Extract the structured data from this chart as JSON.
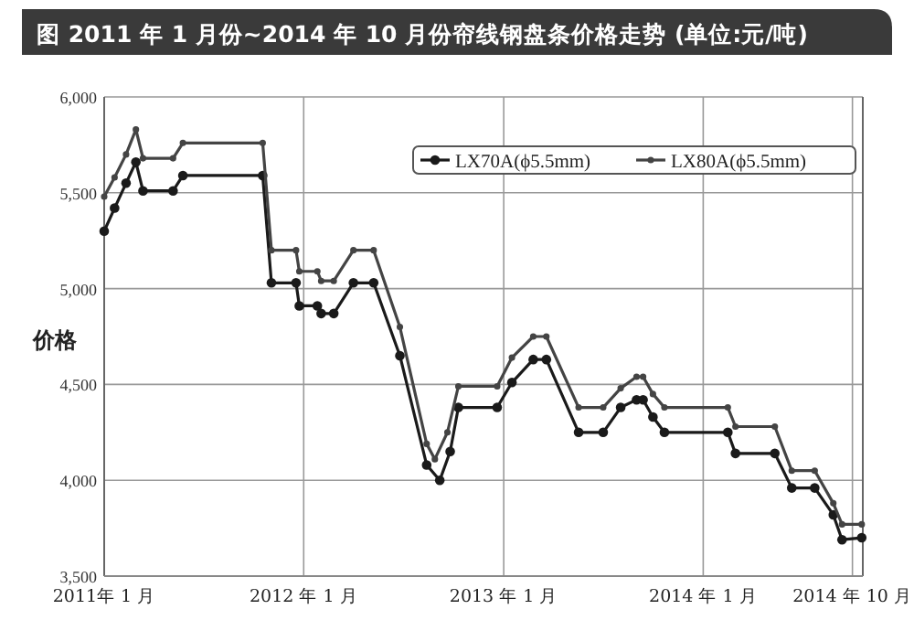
{
  "chart_data": {
    "type": "line",
    "title": "图 2011 年 1 月份~2014 年 10 月份帘线钢盘条价格走势 (单位:元/吨)",
    "ylabel": "价格",
    "xlim": [
      "2011-01-01",
      "2014-10-20"
    ],
    "xticks": [
      {
        "value": "2011-01-01",
        "label": "2011年 1 月"
      },
      {
        "value": "2012-01-01",
        "label": "2012 年 1 月"
      },
      {
        "value": "2013-01-01",
        "label": "2013 年 1 月"
      },
      {
        "value": "2014-01-01",
        "label": "2014 年 1 月"
      },
      {
        "value": "2014-10-01",
        "label": "2014 年 10 月"
      }
    ],
    "ylim": [
      3500,
      6000
    ],
    "yticks": [
      {
        "value": 3500,
        "label": "3,500"
      },
      {
        "value": 4000,
        "label": "4,000"
      },
      {
        "value": 4500,
        "label": "4,500"
      },
      {
        "value": 5000,
        "label": "5,000"
      },
      {
        "value": 5500,
        "label": "5,500"
      },
      {
        "value": 6000,
        "label": "6,000"
      }
    ],
    "grid": true,
    "legend": "top right",
    "marker": "circle",
    "line_style": "solid",
    "series": [
      {
        "name": "LX70A(ϕ5.5mm)",
        "color": "#1a1a1a",
        "x": [
          "2011-01-01",
          "2011-01-20",
          "2011-02-10",
          "2011-02-28",
          "2011-03-13",
          "2011-05-07",
          "2011-05-25",
          "2011-10-18",
          "2011-11-03",
          "2011-12-18",
          "2011-12-24",
          "2012-01-26",
          "2012-02-02",
          "2012-02-25",
          "2012-04-01",
          "2012-05-08",
          "2012-06-25",
          "2012-08-13",
          "2012-09-06",
          "2012-09-25",
          "2012-10-10",
          "2012-12-20",
          "2013-01-16",
          "2013-02-24",
          "2013-03-20",
          "2013-05-18",
          "2013-07-02",
          "2013-08-03",
          "2013-09-01",
          "2013-09-13",
          "2013-10-01",
          "2013-10-22",
          "2014-02-15",
          "2014-03-01",
          "2014-05-12",
          "2014-06-12",
          "2014-07-24",
          "2014-08-27",
          "2014-09-12",
          "2014-10-18"
        ],
        "values": [
          5300,
          5420,
          5550,
          5660,
          5510,
          5510,
          5590,
          5590,
          5030,
          5030,
          4910,
          4910,
          4870,
          4870,
          5030,
          5030,
          4650,
          4080,
          4000,
          4150,
          4380,
          4380,
          4510,
          4630,
          4630,
          4250,
          4250,
          4380,
          4420,
          4420,
          4330,
          4250,
          4250,
          4140,
          4140,
          3960,
          3960,
          3820,
          3690,
          3700
        ]
      },
      {
        "name": "LX80A(ϕ5.5mm)",
        "color": "#444444",
        "x": [
          "2011-01-01",
          "2011-01-20",
          "2011-02-10",
          "2011-02-28",
          "2011-03-13",
          "2011-05-07",
          "2011-05-25",
          "2011-10-18",
          "2011-11-03",
          "2011-12-18",
          "2011-12-24",
          "2012-01-26",
          "2012-02-02",
          "2012-02-25",
          "2012-04-01",
          "2012-05-08",
          "2012-06-25",
          "2012-08-13",
          "2012-08-28",
          "2012-09-20",
          "2012-10-10",
          "2012-12-20",
          "2013-01-16",
          "2013-02-24",
          "2013-03-20",
          "2013-05-18",
          "2013-07-02",
          "2013-08-03",
          "2013-09-01",
          "2013-09-13",
          "2013-10-01",
          "2013-10-22",
          "2014-02-15",
          "2014-03-01",
          "2014-05-12",
          "2014-06-12",
          "2014-07-24",
          "2014-08-27",
          "2014-09-12",
          "2014-10-18"
        ],
        "values": [
          5480,
          5580,
          5700,
          5830,
          5680,
          5680,
          5760,
          5760,
          5200,
          5200,
          5090,
          5090,
          5040,
          5040,
          5200,
          5200,
          4800,
          4190,
          4110,
          4250,
          4490,
          4490,
          4640,
          4750,
          4750,
          4380,
          4380,
          4480,
          4540,
          4540,
          4450,
          4380,
          4380,
          4280,
          4280,
          4050,
          4050,
          3880,
          3770,
          3770
        ]
      }
    ]
  }
}
